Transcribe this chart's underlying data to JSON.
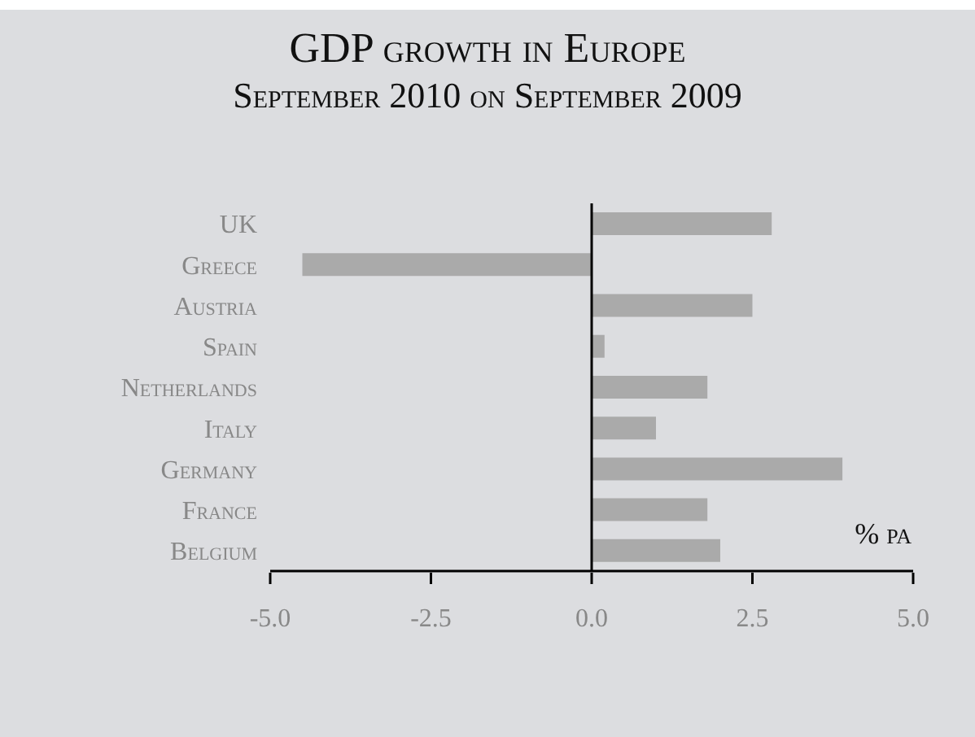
{
  "chart_data": {
    "type": "bar",
    "orientation": "horizontal",
    "title": "GDP growth in Europe",
    "subtitle": "September 2010 on September 2009",
    "xlabel": "% pa",
    "categories": [
      "UK",
      "Greece",
      "Austria",
      "Spain",
      "Netherlands",
      "Italy",
      "Germany",
      "France",
      "Belgium"
    ],
    "values": [
      2.8,
      -4.5,
      2.5,
      0.2,
      1.8,
      1.0,
      3.9,
      1.8,
      2.0
    ],
    "color": "#aaaaaa",
    "xlim": [
      -5,
      5
    ],
    "xticks": [
      {
        "value": -5,
        "label": "-5.0"
      },
      {
        "value": -2.5,
        "label": "-2.5"
      },
      {
        "value": 0,
        "label": "0.0"
      },
      {
        "value": 2.5,
        "label": "2.5"
      },
      {
        "value": 5,
        "label": "5.0"
      }
    ],
    "ref_lines": [
      {
        "axis": "x",
        "value": 0,
        "color": "#000000"
      }
    ],
    "grid": false,
    "legend": false
  }
}
